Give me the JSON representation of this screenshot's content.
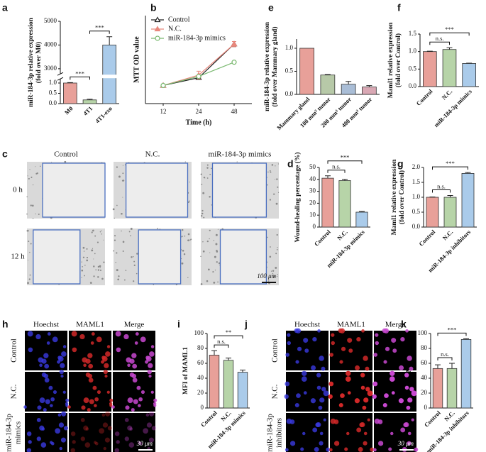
{
  "chart_data": [
    {
      "panel": "a",
      "type": "bar",
      "ylabel": [
        "miR-184-3p relative expression",
        "(fold over M0)"
      ],
      "categories": [
        "M0",
        "4T1",
        "4T1-exo"
      ],
      "values": [
        1.0,
        0.18,
        4000
      ],
      "errors": [
        0.02,
        0.03,
        350
      ],
      "colors": [
        "#e8a099",
        "#b7d4a8",
        "#aacbea"
      ],
      "ylim": [
        0,
        5000
      ],
      "axis_break": [
        1.2,
        2780
      ],
      "yticks": [
        {
          "value": 0,
          "label": "0.0"
        },
        0.5,
        {
          "value": 1,
          "label": "1.0"
        },
        3000,
        4000,
        5000
      ],
      "brackets": [
        {
          "pair": [
            "M0",
            "4T1"
          ],
          "label": "***"
        },
        {
          "pair": [
            "4T1",
            "4T1-exo"
          ],
          "label": "***"
        }
      ]
    },
    {
      "panel": "b",
      "type": "line",
      "xlabel": "Time (h)",
      "ylabel": "MTT OD value",
      "categories": [
        "12",
        "24",
        "48"
      ],
      "ylim": [
        0,
        3.4
      ],
      "legend": "upper-left",
      "series": [
        {
          "name": "Control",
          "color": "#222222",
          "marker": "triangle",
          "values": [
            0.7,
            1.0,
            2.3
          ],
          "errors": [
            0.02,
            0.04,
            0.1
          ]
        },
        {
          "name": "N.C.",
          "color": "#e8877c",
          "marker": "triangle",
          "values": [
            0.7,
            1.1,
            2.3
          ],
          "errors": [
            0.02,
            0.15,
            0.1
          ]
        },
        {
          "name": "miR-184-3p mimics",
          "color": "#79b86f",
          "marker": "circle",
          "values": [
            0.7,
            1.05,
            1.6
          ],
          "errors": [
            0.02,
            0.04,
            0.03
          ]
        }
      ]
    },
    {
      "panel": "e",
      "type": "bar",
      "ylabel": [
        "miR-184-3p relative expression",
        "(fold over Mammary gland)"
      ],
      "categories": [
        "Mammary gland",
        "100 mm³ tumor",
        "200 mm³ tumor",
        "400 mm³ tumor"
      ],
      "values": [
        1.0,
        0.42,
        0.22,
        0.16
      ],
      "errors": [
        0,
        0.01,
        0.06,
        0.03
      ],
      "colors": [
        "#e8a099",
        "#b7c9a8",
        "#a9bdd6",
        "#d9a8b4"
      ],
      "ylim": [
        0,
        1.2
      ],
      "yticks": [
        {
          "value": 0,
          "label": "0.0"
        },
        0.5,
        {
          "value": 1,
          "label": "1.0"
        }
      ]
    },
    {
      "panel": "f",
      "type": "bar",
      "ylabel": [
        "Maml1 relative expression",
        "(fold over Control)"
      ],
      "categories": [
        "Control",
        "N.C.",
        "miR-184-3p mimics"
      ],
      "values": [
        1.0,
        1.06,
        0.66
      ],
      "errors": [
        0.01,
        0.05,
        0.01
      ],
      "colors": [
        "#e8a099",
        "#b7d4a8",
        "#aacbea"
      ],
      "ylim": [
        0,
        1.5
      ],
      "yticks": [
        {
          "value": 0,
          "label": "0.0"
        },
        0.5,
        {
          "value": 1,
          "label": "1.0"
        },
        1.5
      ],
      "brackets": [
        {
          "pair": [
            "Control",
            "N.C."
          ],
          "label": "n.s."
        },
        {
          "pair": [
            "Control",
            "miR-184-3p mimics"
          ],
          "label": "***"
        }
      ]
    },
    {
      "panel": "d",
      "type": "bar",
      "ylabel": [
        "Wound-healing percentage (%)"
      ],
      "categories": [
        "Control",
        "N.C.",
        "miR-184-3p mimics"
      ],
      "values": [
        41,
        39,
        12.5
      ],
      "errors": [
        2,
        1,
        0.6
      ],
      "colors": [
        "#e8a099",
        "#b7d4a8",
        "#aacbea"
      ],
      "ylim": [
        0,
        50
      ],
      "yticks": [
        0,
        10,
        20,
        30,
        40,
        50
      ],
      "brackets": [
        {
          "pair": [
            "Control",
            "N.C."
          ],
          "label": "n.s."
        },
        {
          "pair": [
            "Control",
            "miR-184-3p mimics"
          ],
          "label": "***"
        }
      ]
    },
    {
      "panel": "g",
      "type": "bar",
      "ylabel": [
        "Maml1 relative expression",
        "(fold over Control)"
      ],
      "categories": [
        "Control",
        "N.C.",
        "miR-184-3p inhibitors"
      ],
      "values": [
        1.0,
        1.0,
        1.8
      ],
      "errors": [
        0.01,
        0.06,
        0.03
      ],
      "colors": [
        "#e8a099",
        "#b7d4a8",
        "#aacbea"
      ],
      "ylim": [
        0,
        2
      ],
      "yticks": [
        {
          "value": 0,
          "label": "0.0"
        },
        0.5,
        {
          "value": 1,
          "label": "1.0"
        },
        1.5,
        {
          "value": 2,
          "label": "2.0"
        }
      ],
      "brackets": [
        {
          "pair": [
            "Control",
            "N.C."
          ],
          "label": "n.s."
        },
        {
          "pair": [
            "Control",
            "miR-184-3p inhibitors"
          ],
          "label": "***"
        }
      ]
    },
    {
      "panel": "i",
      "type": "bar",
      "ylabel": [
        "MFI of MAML1"
      ],
      "categories": [
        "Control",
        "N.C.",
        "miR-184-3p mimics"
      ],
      "values": [
        71,
        64,
        48
      ],
      "errors": [
        6,
        3,
        3
      ],
      "colors": [
        "#e8a099",
        "#b7d4a8",
        "#aacbea"
      ],
      "ylim": [
        0,
        100
      ],
      "yticks": [
        0,
        20,
        40,
        60,
        80,
        100
      ],
      "brackets": [
        {
          "pair": [
            "Control",
            "N.C."
          ],
          "label": "n.s."
        },
        {
          "pair": [
            "Control",
            "miR-184-3p mimics"
          ],
          "label": "**"
        }
      ]
    },
    {
      "panel": "k",
      "type": "bar",
      "ylabel": [
        "MFI of MAML1"
      ],
      "categories": [
        "Control",
        "N.C.",
        "miR-184-3p inhibitors"
      ],
      "values": [
        53,
        53,
        92
      ],
      "errors": [
        5,
        7,
        1
      ],
      "colors": [
        "#e8a099",
        "#b7d4a8",
        "#aacbea"
      ],
      "ylim": [
        0,
        100
      ],
      "yticks": [
        0,
        20,
        40,
        60,
        80,
        100
      ],
      "brackets": [
        {
          "pair": [
            "Control",
            "N.C."
          ],
          "label": "n.s."
        },
        {
          "pair": [
            "Control",
            "miR-184-3p inhibitors"
          ],
          "label": "***"
        }
      ]
    }
  ],
  "figure": {
    "c": {
      "letter": "c",
      "columns": [
        "Control",
        "N.C.",
        "miR-184-3p mimics"
      ],
      "rows": [
        [
          "0 h"
        ],
        [
          "12 h"
        ]
      ],
      "scale_bar": "100 μm"
    },
    "h": {
      "letter": "h",
      "columns": [
        "Hoechst",
        "MAML1",
        "Merge"
      ],
      "rows": [
        [
          "Control"
        ],
        [
          "N.C."
        ],
        [
          "miR-184-3p",
          "mimics"
        ]
      ],
      "scale_bar": "30 μm"
    },
    "j": {
      "letter": "j",
      "columns": [
        "Hoechst",
        "MAML1",
        "Merge"
      ],
      "rows": [
        [
          "Control"
        ],
        [
          "N.C."
        ],
        [
          "miR-184-3p",
          "inhibitors"
        ]
      ],
      "scale_bar": "30 μm"
    }
  }
}
